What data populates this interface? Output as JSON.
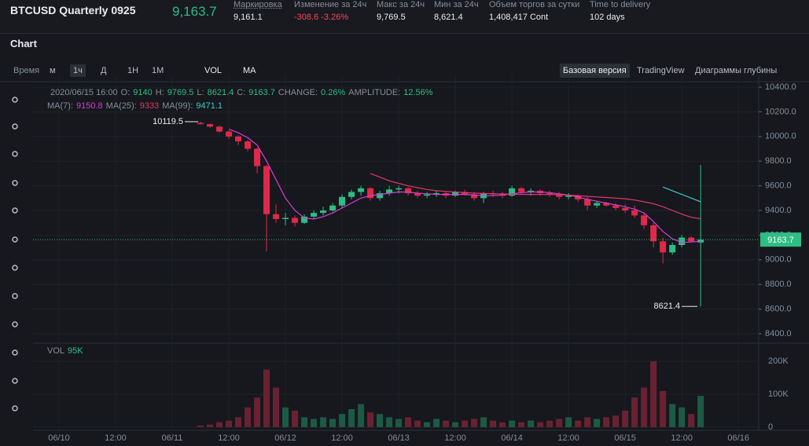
{
  "header": {
    "symbol": "BTCUSD Quarterly 0925",
    "price": "9,163.7",
    "stats": [
      {
        "label": "Маркировка",
        "value": "9,161.1"
      },
      {
        "label": "Изменение за 24ч",
        "value": "-308.6 -3.26%"
      },
      {
        "label": "Макс за 24ч",
        "value": "9,769.5"
      },
      {
        "label": "Мин за 24ч",
        "value": "8,621.4"
      },
      {
        "label": "Объем торгов за сутки",
        "value": "1,408,417 Cont"
      },
      {
        "label": "Time to delivery",
        "value": "102 days"
      }
    ]
  },
  "panel": {
    "title": "Chart",
    "intervals": [
      "Время",
      "м",
      "1ч",
      "Д",
      "1Н",
      "1М"
    ],
    "indicators": [
      "VOL",
      "MA"
    ],
    "views": [
      "Базовая версия",
      "TradingView",
      "Диаграммы глубины"
    ]
  },
  "chart_data": {
    "type": "candlestick",
    "info": [
      {
        "label": "2020/06/15 16:00",
        "value": ""
      }
    ],
    "info_fields": [
      {
        "label": "O:",
        "value": "9140"
      },
      {
        "label": "H:",
        "value": "9769.5"
      },
      {
        "label": "L:",
        "value": "8621.4"
      },
      {
        "label": "C:",
        "value": "9163.7"
      },
      {
        "label": "CHANGE:",
        "value": "0.26%"
      },
      {
        "label": "AMPLITUDE:",
        "value": "12.56%"
      }
    ],
    "x": [
      "2020/06/11 06:00",
      "2020/06/11 08:00",
      "2020/06/11 10:00",
      "2020/06/11 12:00",
      "2020/06/11 14:00",
      "2020/06/11 16:00",
      "2020/06/11 18:00",
      "2020/06/11 20:00",
      "2020/06/11 22:00",
      "2020/06/12 00:00",
      "2020/06/12 02:00",
      "2020/06/12 04:00",
      "2020/06/12 06:00",
      "2020/06/12 08:00",
      "2020/06/12 10:00",
      "2020/06/12 12:00",
      "2020/06/12 14:00",
      "2020/06/12 16:00",
      "2020/06/12 18:00",
      "2020/06/12 20:00",
      "2020/06/12 22:00",
      "2020/06/13 00:00",
      "2020/06/13 02:00",
      "2020/06/13 04:00",
      "2020/06/13 06:00",
      "2020/06/13 08:00",
      "2020/06/13 10:00",
      "2020/06/13 12:00",
      "2020/06/13 14:00",
      "2020/06/13 16:00",
      "2020/06/13 18:00",
      "2020/06/13 20:00",
      "2020/06/13 22:00",
      "2020/06/14 00:00",
      "2020/06/14 02:00",
      "2020/06/14 04:00",
      "2020/06/14 06:00",
      "2020/06/14 08:00",
      "2020/06/14 10:00",
      "2020/06/14 12:00",
      "2020/06/14 14:00",
      "2020/06/14 16:00",
      "2020/06/14 18:00",
      "2020/06/14 20:00",
      "2020/06/14 22:00",
      "2020/06/15 00:00",
      "2020/06/15 02:00",
      "2020/06/15 04:00",
      "2020/06/15 06:00",
      "2020/06/15 08:00",
      "2020/06/15 10:00",
      "2020/06/15 12:00",
      "2020/06/15 14:00",
      "2020/06/15 16:00"
    ],
    "ohlc": [
      [
        10110,
        10119.5,
        10095,
        10100
      ],
      [
        10100,
        10105,
        10070,
        10080
      ],
      [
        10080,
        10090,
        10030,
        10040
      ],
      [
        10040,
        10050,
        9980,
        10000
      ],
      [
        10000,
        10010,
        9930,
        9960
      ],
      [
        9960,
        9970,
        9880,
        9900
      ],
      [
        9900,
        9910,
        9700,
        9760
      ],
      [
        9760,
        9770,
        9069,
        9370
      ],
      [
        9370,
        9450,
        9300,
        9330
      ],
      [
        9330,
        9380,
        9280,
        9340
      ],
      [
        9340,
        9360,
        9270,
        9300
      ],
      [
        9300,
        9370,
        9290,
        9350
      ],
      [
        9350,
        9400,
        9330,
        9380
      ],
      [
        9380,
        9430,
        9360,
        9400
      ],
      [
        9400,
        9460,
        9390,
        9440
      ],
      [
        9440,
        9530,
        9420,
        9510
      ],
      [
        9510,
        9570,
        9490,
        9550
      ],
      [
        9550,
        9600,
        9520,
        9580
      ],
      [
        9580,
        9590,
        9480,
        9500
      ],
      [
        9500,
        9560,
        9480,
        9540
      ],
      [
        9540,
        9600,
        9520,
        9570
      ],
      [
        9570,
        9600,
        9540,
        9580
      ],
      [
        9580,
        9590,
        9520,
        9540
      ],
      [
        9540,
        9560,
        9500,
        9520
      ],
      [
        9520,
        9550,
        9500,
        9530
      ],
      [
        9530,
        9560,
        9510,
        9540
      ],
      [
        9540,
        9550,
        9500,
        9520
      ],
      [
        9520,
        9560,
        9510,
        9550
      ],
      [
        9550,
        9570,
        9520,
        9530
      ],
      [
        9530,
        9550,
        9480,
        9500
      ],
      [
        9500,
        9550,
        9460,
        9540
      ],
      [
        9540,
        9560,
        9510,
        9530
      ],
      [
        9530,
        9550,
        9500,
        9520
      ],
      [
        9520,
        9600,
        9510,
        9580
      ],
      [
        9580,
        9590,
        9530,
        9550
      ],
      [
        9550,
        9580,
        9520,
        9560
      ],
      [
        9560,
        9570,
        9520,
        9540
      ],
      [
        9540,
        9560,
        9510,
        9530
      ],
      [
        9530,
        9550,
        9490,
        9510
      ],
      [
        9510,
        9540,
        9490,
        9520
      ],
      [
        9520,
        9530,
        9470,
        9490
      ],
      [
        9490,
        9510,
        9400,
        9440
      ],
      [
        9440,
        9480,
        9420,
        9460
      ],
      [
        9460,
        9470,
        9430,
        9440
      ],
      [
        9440,
        9460,
        9400,
        9420
      ],
      [
        9420,
        9450,
        9380,
        9400
      ],
      [
        9400,
        9440,
        9340,
        9360
      ],
      [
        9360,
        9380,
        9250,
        9280
      ],
      [
        9280,
        9300,
        9100,
        9150
      ],
      [
        9150,
        9180,
        8970,
        9060
      ],
      [
        9060,
        9140,
        9040,
        9120
      ],
      [
        9120,
        9200,
        9100,
        9180
      ],
      [
        9180,
        9190,
        9140,
        9150
      ],
      [
        9140,
        9769.5,
        8621.4,
        9163.7
      ]
    ],
    "volume": [
      5000,
      8000,
      15000,
      20000,
      30000,
      60000,
      90000,
      175000,
      120000,
      60000,
      50000,
      30000,
      25000,
      30000,
      25000,
      40000,
      55000,
      70000,
      45000,
      40000,
      30000,
      25000,
      30000,
      20000,
      15000,
      25000,
      20000,
      15000,
      20000,
      25000,
      30000,
      20000,
      15000,
      20000,
      15000,
      20000,
      15000,
      20000,
      25000,
      30000,
      20000,
      30000,
      25000,
      30000,
      35000,
      50000,
      90000,
      120000,
      200000,
      110000,
      70000,
      60000,
      40000,
      95000
    ],
    "volume_legend": {
      "name": "VOL",
      "value": "95K"
    },
    "ma": [
      {
        "name": "MA(7):",
        "color": "#d63cd6",
        "values": [
          null,
          null,
          null,
          10060,
          10030,
          9990,
          9930,
          9800,
          9650,
          9500,
          9400,
          9340,
          9330,
          9350,
          9380,
          9420,
          9460,
          9500,
          9520,
          9530,
          9540,
          9550,
          9550,
          9540,
          9535,
          9530,
          9530,
          9530,
          9530,
          9525,
          9520,
          9520,
          9525,
          9535,
          9545,
          9550,
          9550,
          9545,
          9535,
          9525,
          9510,
          9490,
          9475,
          9460,
          9445,
          9430,
          9410,
          9380,
          9310,
          9230,
          9170,
          9140,
          9145,
          9150.8
        ]
      },
      {
        "name": "MA(25):",
        "color": "#e0396a",
        "values": [
          null,
          null,
          null,
          null,
          null,
          null,
          null,
          null,
          null,
          null,
          null,
          null,
          null,
          null,
          null,
          null,
          null,
          null,
          9700,
          9670,
          9640,
          9620,
          9600,
          9585,
          9570,
          9560,
          9555,
          9550,
          9545,
          9540,
          9538,
          9536,
          9534,
          9532,
          9530,
          9530,
          9530,
          9530,
          9528,
          9525,
          9520,
          9515,
          9510,
          9505,
          9500,
          9495,
          9485,
          9470,
          9455,
          9430,
          9400,
          9370,
          9345,
          9333
        ]
      },
      {
        "name": "MA(99):",
        "color": "#3dc8c8",
        "values": [
          null,
          null,
          null,
          null,
          null,
          null,
          null,
          null,
          null,
          null,
          null,
          null,
          null,
          null,
          null,
          null,
          null,
          null,
          null,
          null,
          null,
          null,
          null,
          null,
          null,
          null,
          null,
          null,
          null,
          null,
          null,
          null,
          null,
          null,
          null,
          null,
          null,
          null,
          null,
          null,
          null,
          null,
          null,
          null,
          null,
          null,
          null,
          null,
          null,
          9590,
          9560,
          9530,
          9500,
          9471.1
        ]
      }
    ],
    "up_color": "#2ebd85",
    "down_color": "#e0294a",
    "vol_up_color": "#1c5a45",
    "vol_down_color": "#6a2232",
    "xlim": [
      "2020/06/09 18:30",
      "2020/06/16 04:18"
    ],
    "xticks": [
      {
        "value": "2020/06/10 00:00",
        "label": "06/10"
      },
      {
        "value": "2020/06/10 12:00",
        "label": "12:00"
      },
      {
        "value": "2020/06/11 00:00",
        "label": "06/11"
      },
      {
        "value": "2020/06/11 12:00",
        "label": "12:00"
      },
      {
        "value": "2020/06/12 00:00",
        "label": "06/12"
      },
      {
        "value": "2020/06/12 12:00",
        "label": "12:00"
      },
      {
        "value": "2020/06/13 00:00",
        "label": "06/13"
      },
      {
        "value": "2020/06/13 12:00",
        "label": "12:00"
      },
      {
        "value": "2020/06/14 00:00",
        "label": "06/14"
      },
      {
        "value": "2020/06/14 12:00",
        "label": "12:00"
      },
      {
        "value": "2020/06/15 00:00",
        "label": "06/15"
      },
      {
        "value": "2020/06/15 12:00",
        "label": "12:00"
      },
      {
        "value": "2020/06/16 00:00",
        "label": "06/16"
      }
    ],
    "ylim": [
      8324,
      10470
    ],
    "yticks": [
      {
        "value": 8400,
        "label": "8400.0"
      },
      {
        "value": 8600,
        "label": "8600.0"
      },
      {
        "value": 8800,
        "label": "8800.0"
      },
      {
        "value": 9000,
        "label": "9000.0"
      },
      {
        "value": 9200,
        "label": "9200.0"
      },
      {
        "value": 9400,
        "label": "9400.0"
      },
      {
        "value": 9600,
        "label": "9600.0"
      },
      {
        "value": 9800,
        "label": "9800.0"
      },
      {
        "value": 10000,
        "label": "10000.0"
      },
      {
        "value": 10200,
        "label": "10200.0"
      },
      {
        "value": 10400,
        "label": "10400.0"
      }
    ],
    "vol_ylim": [
      0,
      248000
    ],
    "vol_yticks": [
      0,
      {
        "value": 100000,
        "label": "100K"
      },
      {
        "value": 200000,
        "label": "200K"
      }
    ],
    "grid": true
  }
}
